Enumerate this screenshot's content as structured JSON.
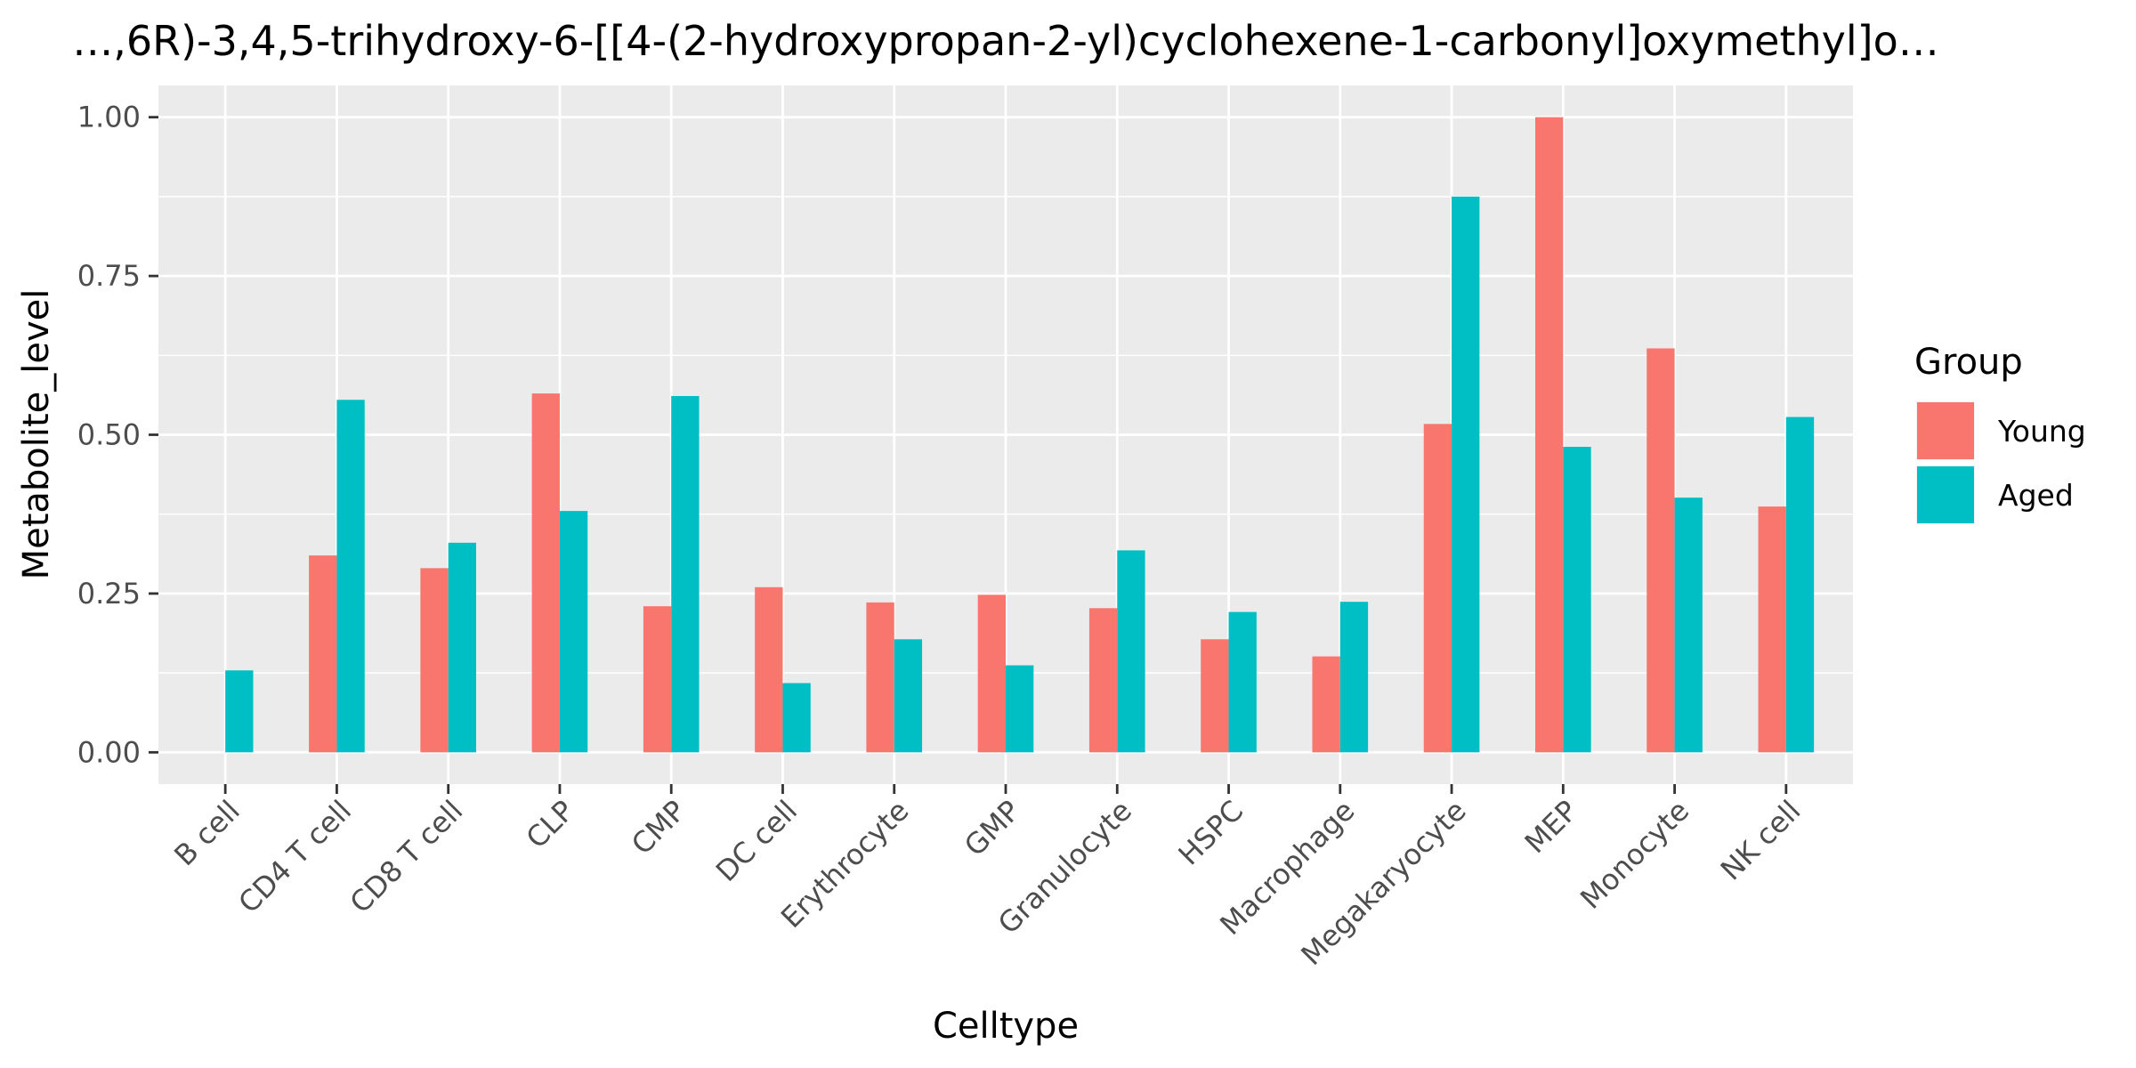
{
  "chart_data": {
    "type": "bar",
    "title": "…,6R)-3,4,5-trihydroxy-6-[[4-(2-hydroxypropan-2-yl)cyclohexene-1-carbonyl]oxymethyl]o…",
    "xlabel": "Celltype",
    "ylabel": "Metabolite_level",
    "ylim": [
      -0.05,
      1.05
    ],
    "yticks": [
      0.0,
      0.25,
      0.5,
      0.75,
      1.0
    ],
    "ytick_labels": [
      "0.00",
      "0.25",
      "0.50",
      "0.75",
      "1.00"
    ],
    "grid": true,
    "legend": {
      "title": "Group",
      "position": "right"
    },
    "categories": [
      "B cell",
      "CD4 T cell",
      "CD8 T cell",
      "CLP",
      "CMP",
      "DC cell",
      "Erythrocyte",
      "GMP",
      "Granulocyte",
      "HSPC",
      "Macrophage",
      "Megakaryocyte",
      "MEP",
      "Monocyte",
      "NK cell"
    ],
    "series": [
      {
        "name": "Young",
        "color": "#F8766D",
        "values": [
          null,
          0.31,
          0.29,
          0.565,
          0.23,
          0.26,
          0.236,
          0.248,
          0.227,
          0.178,
          0.151,
          0.517,
          1.0,
          0.636,
          0.387
        ]
      },
      {
        "name": "Aged",
        "color": "#00BFC4",
        "values": [
          0.129,
          0.555,
          0.33,
          0.38,
          0.561,
          0.109,
          0.178,
          0.137,
          0.318,
          0.221,
          0.237,
          0.875,
          0.481,
          0.401,
          0.528
        ]
      }
    ]
  }
}
